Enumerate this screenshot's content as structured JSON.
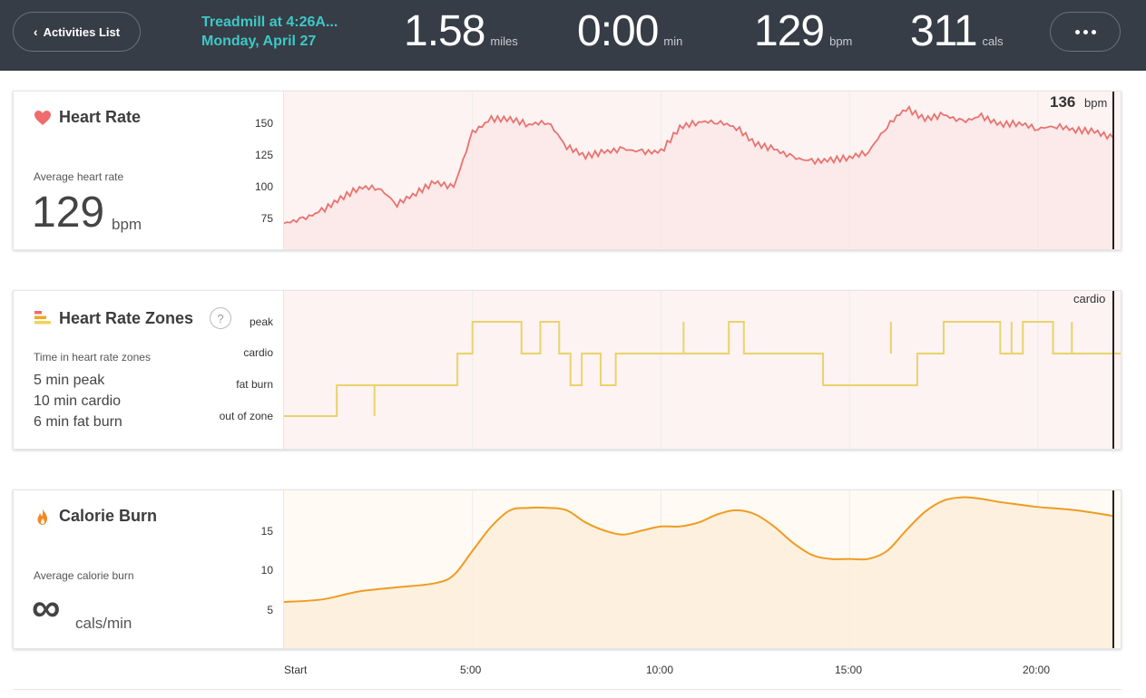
{
  "header": {
    "back_label": "Activities List",
    "title_line1": "Treadmill at 4:26A...",
    "title_line2": "Monday, April 27",
    "stats": [
      {
        "value": "1.58",
        "unit": "miles"
      },
      {
        "value": "0:00",
        "unit": "min"
      },
      {
        "value": "129",
        "unit": "bpm"
      },
      {
        "value": "311",
        "unit": "cals"
      }
    ],
    "more_icon": "ellipsis-icon"
  },
  "heart_rate": {
    "title": "Heart Rate",
    "icon": "heart-icon",
    "avg_label": "Average heart rate",
    "avg_value": "129",
    "avg_unit": "bpm",
    "y_ticks": [
      "150",
      "125",
      "100",
      "75"
    ],
    "cursor_value": "136",
    "cursor_unit": "bpm",
    "color": "#e8736f"
  },
  "zones": {
    "title": "Heart Rate Zones",
    "icon": "zones-icon",
    "help": "?",
    "time_label": "Time in heart rate zones",
    "lines": [
      "5 min peak",
      "10 min cardio",
      "6 min fat burn"
    ],
    "y_ticks": [
      "peak",
      "cardio",
      "fat burn",
      "out of zone"
    ],
    "cursor_label": "cardio",
    "color": "#e9d36a"
  },
  "calories": {
    "title": "Calorie Burn",
    "icon": "flame-icon",
    "avg_label": "Average calorie burn",
    "avg_value": "∞",
    "avg_unit": "cals/min",
    "y_ticks": [
      "15",
      "10",
      "5"
    ],
    "color": "#ef9c23"
  },
  "x_axis": [
    "Start",
    "5:00",
    "10:00",
    "15:00",
    "20:00"
  ],
  "chart_data": [
    {
      "type": "area",
      "title": "Heart Rate",
      "xlabel": "min",
      "ylabel": "bpm",
      "ylim": [
        55,
        170
      ],
      "xlim": [
        0,
        22
      ],
      "x": [
        0,
        0.5,
        1,
        1.5,
        2,
        2.5,
        3,
        3.5,
        4,
        4.5,
        5,
        5.5,
        6,
        6.5,
        7,
        7.5,
        8,
        8.5,
        9,
        9.5,
        10,
        10.5,
        11,
        11.5,
        12,
        12.5,
        13,
        13.5,
        14,
        14.5,
        15,
        15.5,
        16,
        16.5,
        17,
        17.5,
        18,
        18.5,
        19,
        19.5,
        20,
        20.5,
        21,
        21.5,
        22
      ],
      "values": [
        74,
        77,
        83,
        92,
        100,
        100,
        88,
        96,
        104,
        100,
        140,
        150,
        150,
        146,
        148,
        130,
        123,
        126,
        128,
        126,
        126,
        144,
        148,
        148,
        144,
        132,
        128,
        122,
        119,
        120,
        122,
        126,
        145,
        158,
        150,
        153,
        148,
        152,
        146,
        147,
        143,
        145,
        142,
        141,
        136
      ]
    },
    {
      "type": "line",
      "title": "Heart Rate Zones",
      "categories": [
        "out of zone",
        "fat burn",
        "cardio",
        "peak"
      ],
      "x": [
        0,
        1,
        1.4,
        3.5,
        3.7,
        4.6,
        5,
        5.5,
        6,
        6.3,
        6.8,
        7.3,
        7.6,
        7.9,
        8.4,
        8.8,
        9.2,
        11,
        11.8,
        12.2,
        13.2,
        14.3,
        15.3,
        16.8,
        17.5,
        18,
        18.5,
        19,
        19.6,
        20.4,
        20.8,
        22
      ],
      "values": [
        0,
        0,
        1,
        1,
        1,
        2,
        3,
        3,
        3,
        2,
        3,
        2,
        1,
        2,
        1,
        2,
        2,
        2,
        3,
        2,
        2,
        1,
        1,
        2,
        3,
        3,
        3,
        2,
        3,
        2,
        2,
        2
      ]
    },
    {
      "type": "area",
      "title": "Calorie Burn",
      "ylabel": "cals/min",
      "ylim": [
        0,
        19
      ],
      "xlim": [
        0,
        22
      ],
      "x": [
        0,
        1,
        2,
        3,
        4,
        4.5,
        5,
        5.5,
        6,
        6.5,
        7,
        7.5,
        8,
        8.5,
        9,
        9.5,
        10,
        10.5,
        11,
        11.5,
        12,
        12.5,
        13,
        13.5,
        14,
        14.5,
        15,
        15.5,
        16,
        16.5,
        17,
        17.5,
        18,
        18.5,
        19,
        19.5,
        20,
        21,
        22
      ],
      "values": [
        5.7,
        6,
        7,
        7.5,
        8,
        9,
        12,
        15,
        17,
        17.3,
        17.3,
        17,
        15.5,
        14.5,
        14,
        14.5,
        15,
        15,
        15.5,
        16.5,
        17,
        16.5,
        15,
        13,
        11.5,
        11,
        11,
        11,
        12,
        14.5,
        16.8,
        18.2,
        18.6,
        18.4,
        18,
        17.7,
        17.4,
        17,
        16.3
      ]
    }
  ]
}
